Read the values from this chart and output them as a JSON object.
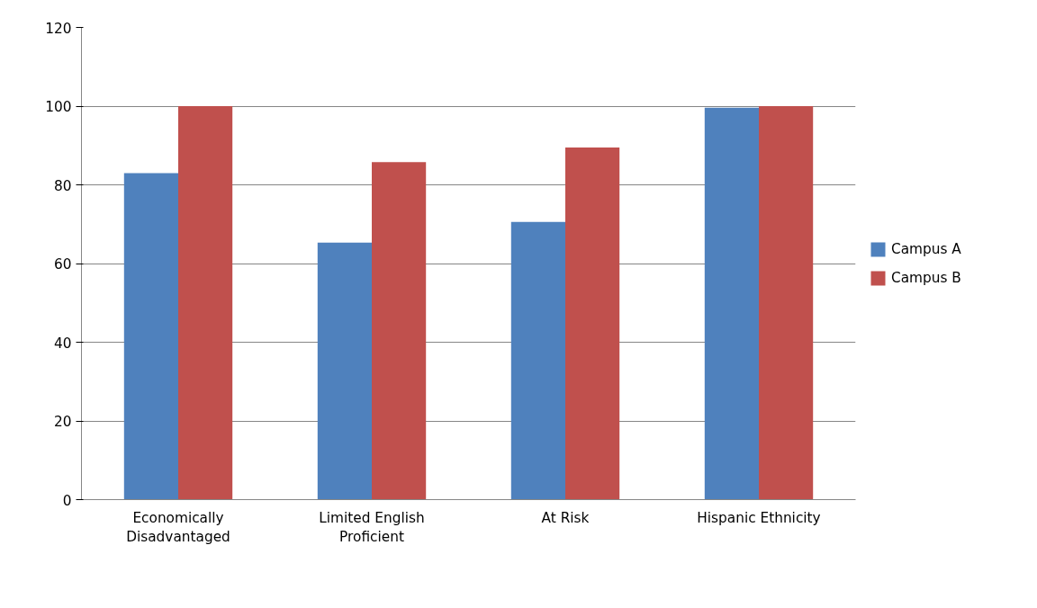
{
  "chart_data": {
    "type": "bar",
    "categories": [
      "Economically Disadvantaged",
      "Limited English Proficient",
      "At Risk",
      "Hispanic Ethnicity"
    ],
    "series": [
      {
        "name": "Campus A",
        "color": "#4f81bd",
        "values": [
          83,
          65.3,
          70.6,
          99.6
        ]
      },
      {
        "name": "Campus B",
        "color": "#c0504d",
        "values": [
          100,
          85.8,
          89.5,
          100
        ]
      }
    ],
    "ylim": [
      0,
      120
    ],
    "yticks": [
      0,
      20,
      40,
      60,
      80,
      100,
      120
    ],
    "grid": "y",
    "legend": "right"
  }
}
